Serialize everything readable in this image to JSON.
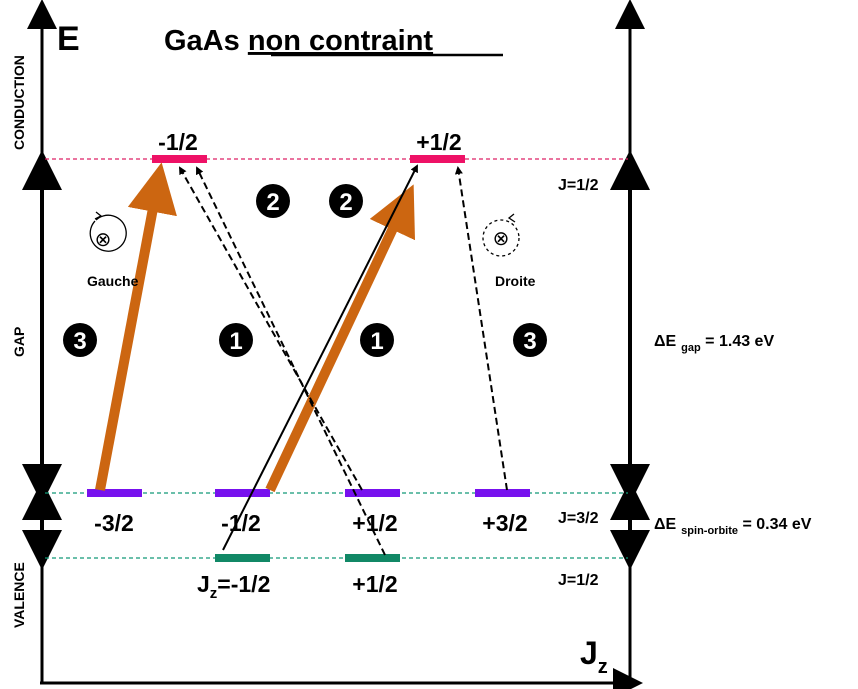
{
  "title": {
    "main": "GaAs ",
    "underlined": "non contraint"
  },
  "axes": {
    "y_label": "E",
    "x_label_main": "J",
    "x_label_sub": "z"
  },
  "regions": {
    "conduction": "CONDUCTION",
    "gap": "GAP",
    "valence": "VALENCE"
  },
  "levels": {
    "conduction": [
      "-1/2",
      "+1/2"
    ],
    "heavy_light": [
      "-3/2",
      "-1/2",
      "+1/2",
      "+3/2"
    ],
    "split_off_prefix_main": "J",
    "split_off_prefix_sub": "z",
    "split_off": [
      "=-1/2",
      "+1/2"
    ]
  },
  "j_labels": {
    "conduction": "J=1/2",
    "valence_top": "J=3/2",
    "valence_bottom": "J=1/2"
  },
  "energies": {
    "gap_delta": "ΔE",
    "gap_sub": "gap",
    "gap_value": " = 1.43 eV",
    "so_delta": "ΔE",
    "so_sub": "spin-orbite",
    "so_value": " = 0.34 eV"
  },
  "polarization": {
    "left": "Gauche",
    "right": "Droite",
    "symbol": "⊗"
  },
  "transition_numbers": [
    "3",
    "1",
    "1",
    "3",
    "2",
    "2"
  ],
  "colors": {
    "conduction_level": "#ee1166",
    "valence_level": "#7711ee",
    "split_off_level": "#118866",
    "strong_transition": "#cc6611",
    "conduction_dash": "#dd2266",
    "valence_dash": "#119977"
  }
}
